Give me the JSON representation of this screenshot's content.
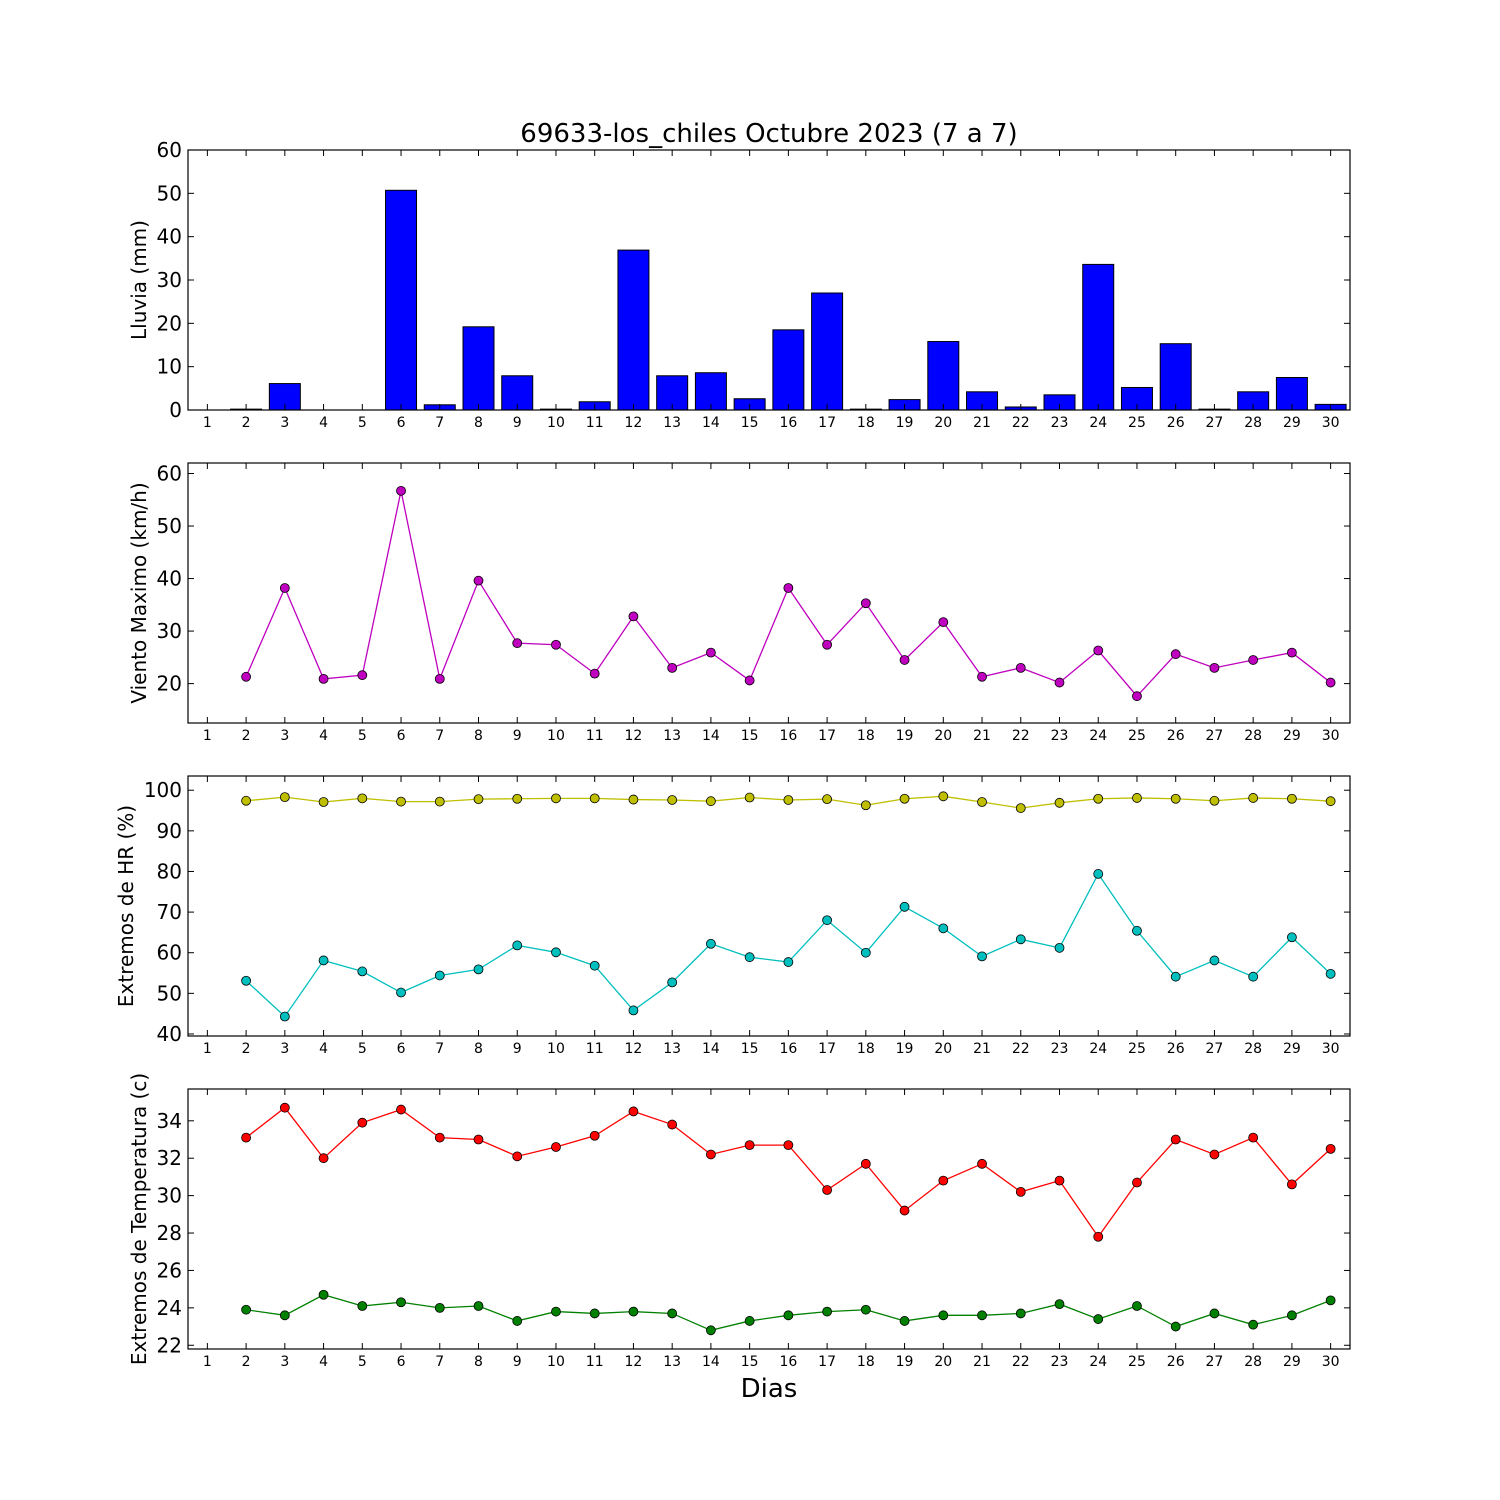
{
  "title": "69633-los_chiles Octubre 2023  (7 a 7)",
  "xlabel": "Dias",
  "days": [
    1,
    2,
    3,
    4,
    5,
    6,
    7,
    8,
    9,
    10,
    11,
    12,
    13,
    14,
    15,
    16,
    17,
    18,
    19,
    20,
    21,
    22,
    23,
    24,
    25,
    26,
    27,
    28,
    29,
    30
  ],
  "chart_data": [
    {
      "type": "bar",
      "ylabel": "Lluvia (mm)",
      "ylim": [
        0,
        60
      ],
      "yticks": [
        0,
        10,
        20,
        30,
        40,
        50,
        60
      ],
      "grid": false,
      "colors": [
        "#0000ff"
      ],
      "series": [
        {
          "values": [
            0.0,
            0.2,
            6.1,
            0.0,
            0.0,
            50.7,
            1.2,
            19.2,
            7.9,
            0.2,
            1.9,
            36.9,
            7.9,
            8.6,
            2.6,
            18.5,
            27.0,
            0.2,
            2.4,
            15.8,
            4.2,
            0.7,
            3.5,
            33.6,
            5.2,
            15.3,
            0.2,
            4.2,
            7.5,
            1.3
          ]
        }
      ]
    },
    {
      "type": "line",
      "ylabel": "Viento Maximo (km/h)",
      "ylim": [
        12.5,
        62
      ],
      "yticks": [
        20,
        30,
        40,
        50,
        60
      ],
      "grid": false,
      "colors": [
        "#bf00bf"
      ],
      "series": [
        {
          "values": [
            null,
            21.3,
            38.2,
            20.9,
            21.6,
            56.7,
            20.9,
            39.6,
            27.7,
            27.4,
            21.9,
            32.8,
            23.0,
            25.9,
            20.6,
            38.2,
            27.4,
            35.3,
            24.5,
            31.7,
            21.3,
            23.0,
            20.2,
            26.3,
            17.6,
            25.6,
            23.0,
            24.5,
            25.9,
            20.2
          ]
        }
      ]
    },
    {
      "type": "line",
      "ylabel": "Extremos de HR (%)",
      "ylim": [
        39.5,
        103.5
      ],
      "yticks": [
        40,
        50,
        60,
        70,
        80,
        90,
        100
      ],
      "grid": false,
      "colors": [
        "#bfbf00",
        "#00bfbf"
      ],
      "series": [
        {
          "values": [
            null,
            97.4,
            98.3,
            97.1,
            98.0,
            97.2,
            97.2,
            97.8,
            97.9,
            98.0,
            98.0,
            97.7,
            97.6,
            97.3,
            98.2,
            97.6,
            97.8,
            96.3,
            97.9,
            98.5,
            97.1,
            95.6,
            96.9,
            97.9,
            98.1,
            97.9,
            97.4,
            98.1,
            97.9,
            97.3
          ]
        },
        {
          "values": [
            null,
            53.1,
            44.3,
            58.1,
            55.4,
            50.2,
            54.4,
            55.9,
            61.8,
            60.1,
            56.8,
            45.8,
            52.7,
            62.2,
            58.9,
            57.7,
            68.0,
            60.0,
            71.3,
            66.0,
            59.1,
            63.3,
            61.2,
            79.4,
            65.4,
            54.1,
            58.1,
            54.1,
            63.8,
            54.8
          ]
        }
      ]
    },
    {
      "type": "line",
      "ylabel": "Extremos de Temperatura (c)",
      "ylim": [
        21.8,
        35.7
      ],
      "yticks": [
        22,
        24,
        26,
        28,
        30,
        32,
        34
      ],
      "grid": false,
      "colors": [
        "#ff0000",
        "#008000"
      ],
      "series": [
        {
          "values": [
            null,
            33.1,
            34.7,
            32.0,
            33.9,
            34.6,
            33.1,
            33.0,
            32.1,
            32.6,
            33.2,
            34.5,
            33.8,
            32.2,
            32.7,
            32.7,
            30.3,
            31.7,
            29.2,
            30.8,
            31.7,
            30.2,
            30.8,
            27.8,
            30.7,
            33.0,
            32.2,
            33.1,
            30.6,
            32.5
          ]
        },
        {
          "values": [
            null,
            23.9,
            23.6,
            24.7,
            24.1,
            24.3,
            24.0,
            24.1,
            23.3,
            23.8,
            23.7,
            23.8,
            23.7,
            22.8,
            23.3,
            23.6,
            23.8,
            23.9,
            23.3,
            23.6,
            23.6,
            23.7,
            24.2,
            23.4,
            24.1,
            23.0,
            23.7,
            23.1,
            23.6,
            24.4
          ]
        }
      ]
    }
  ]
}
